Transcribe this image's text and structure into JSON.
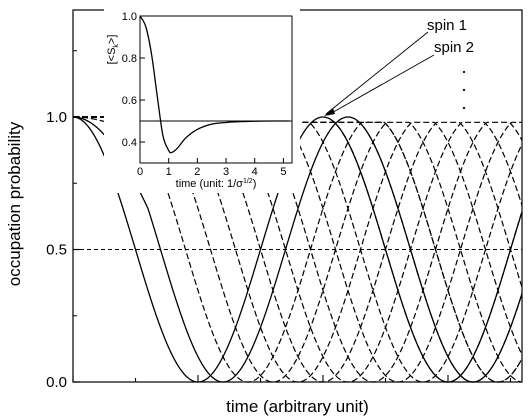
{
  "chart_data": [
    {
      "type": "line",
      "xlabel": "time (arbitrary unit)",
      "ylabel": "occupation probability",
      "ylim": [
        0,
        1.4
      ],
      "y_ticks": [
        "0.0",
        "0.5",
        "1.0"
      ],
      "x_tick_labels": [],
      "grid": false,
      "reference_line": {
        "y": 0.5,
        "style": "dashed"
      },
      "series": [
        {
          "name": "spin 1",
          "style": "solid",
          "period": 2.0,
          "phase": 0.0,
          "x": [
            0,
            0.25,
            0.5,
            0.75,
            1.0,
            1.25,
            1.5,
            1.75,
            2.0,
            2.25,
            2.5,
            2.75,
            3.0
          ],
          "values": [
            1.0,
            0.85,
            0.5,
            0.15,
            0.0,
            0.15,
            0.5,
            0.85,
            1.0,
            0.85,
            0.5,
            0.15,
            0.0
          ]
        },
        {
          "name": "spin 2",
          "style": "solid",
          "period": 2.0,
          "phase": 0.025,
          "x": [
            0,
            0.25,
            0.5,
            0.75,
            1.0,
            1.25,
            1.5,
            1.75,
            2.0,
            2.25,
            2.5,
            2.75,
            3.0
          ],
          "values": [
            1.0,
            0.88,
            0.54,
            0.19,
            0.01,
            0.11,
            0.46,
            0.81,
            0.99,
            0.89,
            0.57,
            0.21,
            0.02
          ]
        }
      ],
      "additional_dashed_series": {
        "count": 11,
        "style": "dashed",
        "phase_step": 0.025,
        "plateau_max": 0.98,
        "note_dots": ".  .  ."
      },
      "annotations": [
        {
          "text": "spin 1",
          "points_to_series": "spin 1"
        },
        {
          "text": "spin 2",
          "points_to_series": "spin 2"
        }
      ]
    },
    {
      "type": "line",
      "inset": true,
      "xlabel": "time (unit: 1/σ",
      "xlabel_sup": "1/2",
      "xlabel_close": ")",
      "ylabel": "[<S",
      "ylabel_sub": "k",
      "ylabel_close": ">]",
      "xlim": [
        0,
        5.3
      ],
      "ylim": [
        0.3,
        1.0
      ],
      "x_ticks": [
        "0",
        "1",
        "2",
        "3",
        "4",
        "5"
      ],
      "y_ticks": [
        "0.4",
        "0.6",
        "0.8",
        "1.0"
      ],
      "reference_line": {
        "y": 0.5,
        "style": "solid"
      },
      "series": [
        {
          "name": "",
          "x": [
            0,
            0.2,
            0.4,
            0.6,
            0.8,
            1.0,
            1.1,
            1.3,
            1.6,
            2.0,
            2.5,
            3.0,
            3.5,
            4.0,
            4.5,
            5.0,
            5.2
          ],
          "values": [
            1.0,
            0.95,
            0.82,
            0.62,
            0.43,
            0.36,
            0.35,
            0.37,
            0.42,
            0.46,
            0.485,
            0.493,
            0.497,
            0.499,
            0.5,
            0.5,
            0.5
          ]
        }
      ]
    }
  ]
}
